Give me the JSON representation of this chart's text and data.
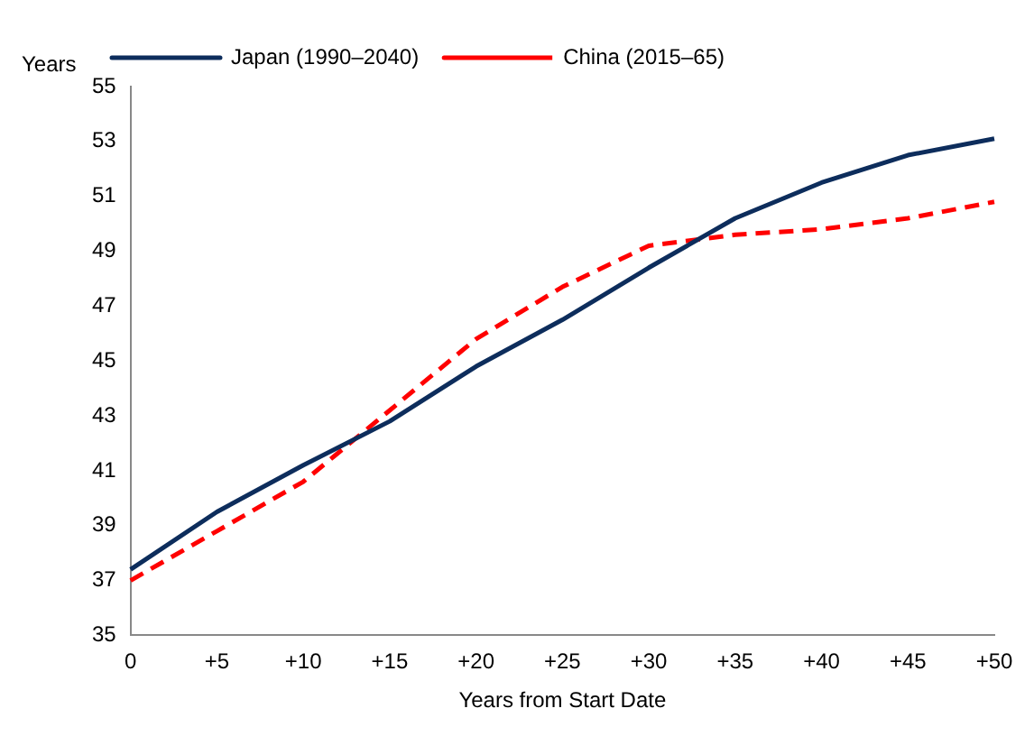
{
  "chart_data": {
    "type": "line",
    "ylabel": "Years",
    "xlabel": "Years from Start Date",
    "categories": [
      "0",
      "+5",
      "+10",
      "+15",
      "+20",
      "+25",
      "+30",
      "+35",
      "+40",
      "+45",
      "+50"
    ],
    "series": [
      {
        "name": "Japan (1990–2040)",
        "color": "#0d2d5c",
        "line_style": "solid",
        "values": [
          37.4,
          39.5,
          41.2,
          42.8,
          44.8,
          46.5,
          48.4,
          50.2,
          51.5,
          52.5,
          53.1
        ]
      },
      {
        "name": "China (2015–65)",
        "color": "#ff0000",
        "line_style": "dashed",
        "values": [
          37.0,
          38.8,
          40.6,
          43.2,
          45.8,
          47.7,
          49.2,
          49.6,
          49.8,
          50.2,
          50.8
        ]
      }
    ],
    "ylim": [
      35,
      55
    ],
    "yticks": [
      35,
      37,
      39,
      41,
      43,
      45,
      47,
      49,
      51,
      53,
      55
    ],
    "grid": false,
    "legend": "top left",
    "marker": "none"
  }
}
